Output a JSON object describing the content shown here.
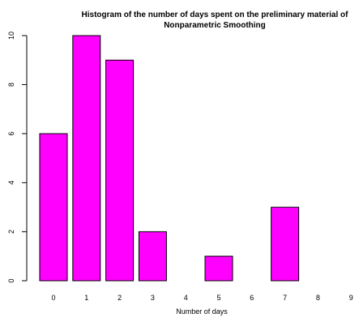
{
  "chart_data": {
    "type": "bar",
    "title_lines": [
      "Histogram of the number of days spent on the preliminary material of",
      "Nonparametric Smoothing"
    ],
    "xlabel": "Number of days",
    "ylabel": "",
    "categories": [
      "0",
      "1",
      "2",
      "3",
      "4",
      "5",
      "6",
      "7",
      "8",
      "9"
    ],
    "values": [
      6,
      10,
      9,
      2,
      0,
      1,
      0,
      3,
      0,
      0
    ],
    "ylim": [
      0,
      10
    ],
    "yticks": [
      "0",
      "2",
      "4",
      "6",
      "8",
      "10"
    ],
    "bar_color": "#ff00ff",
    "bar_border_color": "#000000",
    "grid": false
  }
}
